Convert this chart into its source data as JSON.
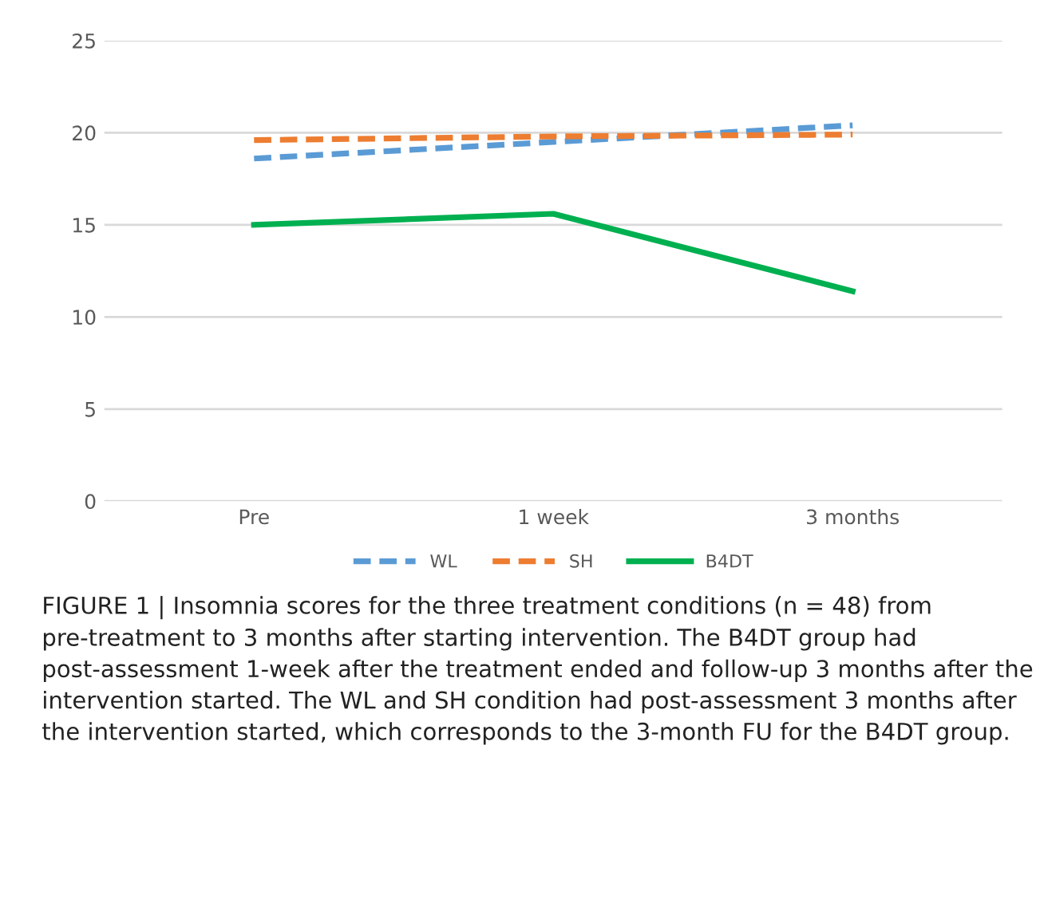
{
  "chart_data": {
    "type": "line",
    "categories": [
      "Pre",
      "1 week",
      "3 months"
    ],
    "series": [
      {
        "name": "WL",
        "color": "#5b9bd5",
        "values": [
          18.6,
          19.5,
          20.4
        ],
        "line_style": "dashed"
      },
      {
        "name": "SH",
        "color": "#ed7d31",
        "values": [
          19.6,
          19.8,
          19.9
        ],
        "line_style": "dashed"
      },
      {
        "name": "B4DT",
        "color": "#00b050",
        "values": [
          15.0,
          15.6,
          11.4
        ],
        "line_style": "solid"
      }
    ],
    "ylim": [
      0,
      25
    ],
    "yticks": [
      0,
      5,
      10,
      15,
      20,
      25
    ],
    "grid": "y",
    "legend": "bottom",
    "marker": "none",
    "annotations": [
      "FIGURE 1 | Insomnia scores for the three treatment conditions (n = 48) from pre-treatment to 3 months after starting intervention. The B4DT group had post-assessment 1-week after the treatment ended and follow-up 3 months after the intervention started. The WL and SH condition had post-assessment 3 months after the intervention started, which corresponds to the 3-month FU for the B4DT group."
    ]
  }
}
